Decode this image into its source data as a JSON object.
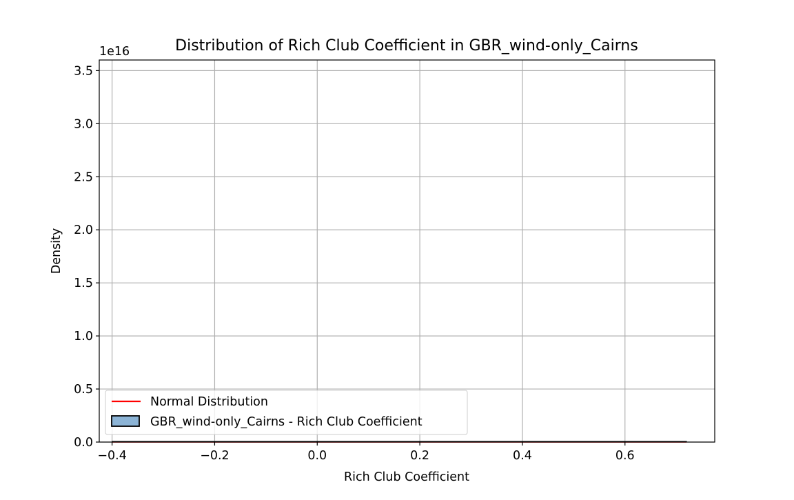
{
  "chart_data": {
    "type": "area",
    "title": "Distribution of Rich Club Coefficient in GBR_wind-only_Cairns",
    "xlabel": "Rich Club Coefficient",
    "ylabel": "Density",
    "y_offset_label": "1e16",
    "xlim": [
      -0.425,
      0.775
    ],
    "ylim": [
      0,
      3.6
    ],
    "x_ticks": [
      -0.4,
      -0.2,
      0.0,
      0.2,
      0.4,
      0.6
    ],
    "x_tick_labels": [
      "−0.4",
      "−0.2",
      "0.0",
      "0.2",
      "0.4",
      "0.6"
    ],
    "y_ticks": [
      0.0,
      0.5,
      1.0,
      1.5,
      2.0,
      2.5,
      3.0,
      3.5
    ],
    "y_tick_labels": [
      "0.0",
      "0.5",
      "1.0",
      "1.5",
      "2.0",
      "2.5",
      "3.0",
      "3.5"
    ],
    "grid": true,
    "legend_position": "lower-left",
    "series": [
      {
        "name": "Normal Distribution",
        "kind": "line",
        "color": "#ff0000",
        "x": [
          -0.4,
          0.0,
          0.4,
          0.72
        ],
        "values": [
          0,
          0,
          0,
          0
        ]
      },
      {
        "name": "GBR_wind-only_Cairns - Rich Club Coefficient",
        "kind": "histogram",
        "color": "#8cb4d6",
        "edge_color": "#000000",
        "x": [
          -0.4,
          0.72
        ],
        "values": [
          0,
          0
        ]
      }
    ]
  }
}
